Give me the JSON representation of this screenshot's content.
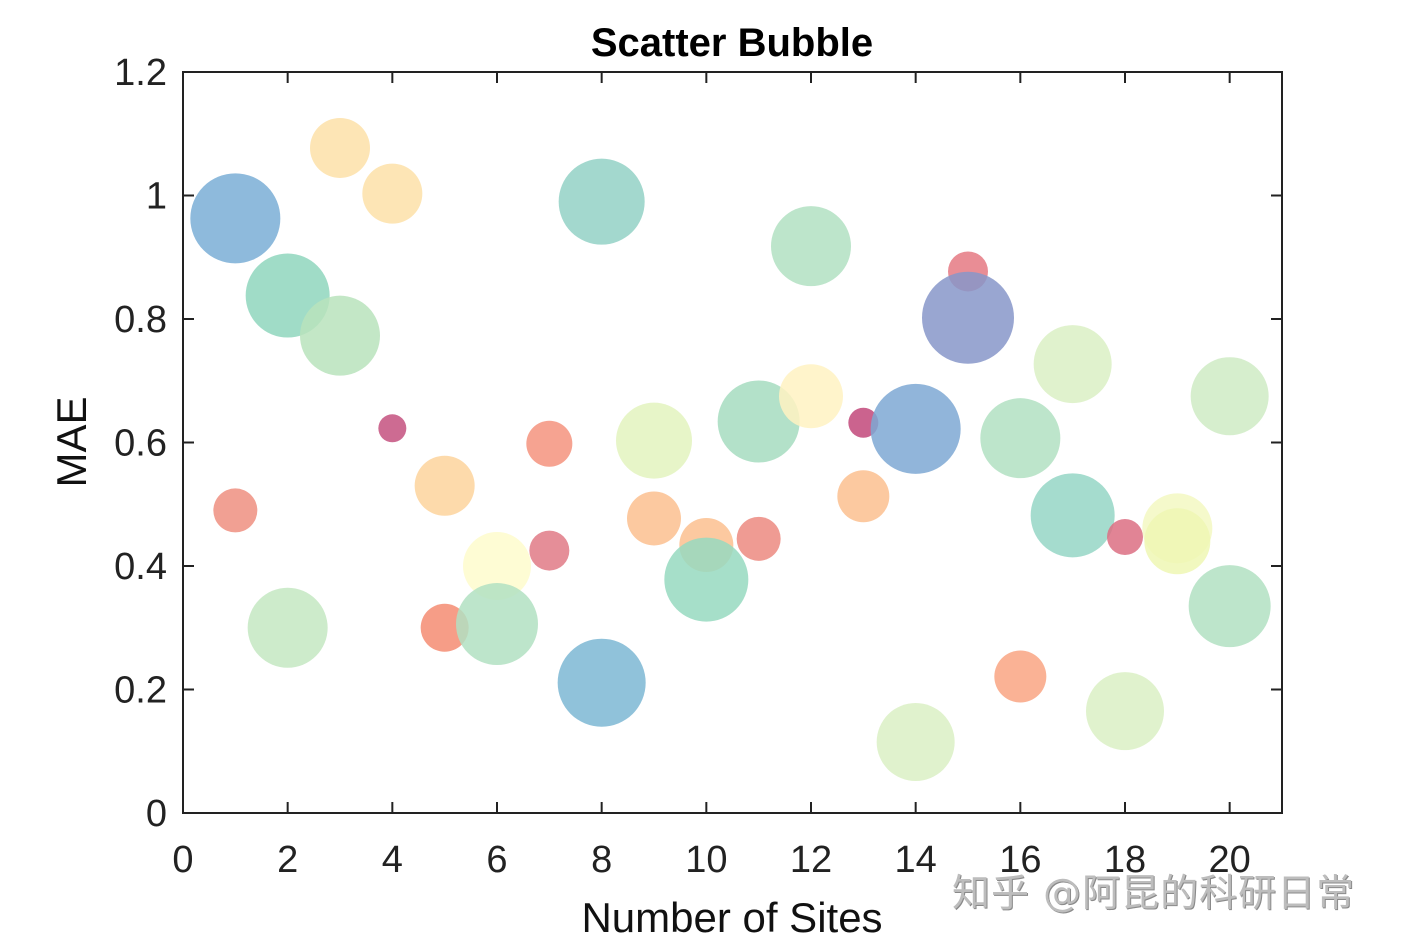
{
  "chart_data": {
    "type": "scatter",
    "subtype": "bubble",
    "title": "Scatter Bubble",
    "xlabel": "Number of Sites",
    "ylabel": "MAE",
    "xlim": [
      0,
      21
    ],
    "ylim": [
      0,
      1.2
    ],
    "xticks": [
      0,
      2,
      4,
      6,
      8,
      10,
      12,
      14,
      16,
      18,
      20
    ],
    "xtick_labels": [
      "0",
      "2",
      "4",
      "6",
      "8",
      "10",
      "12",
      "14",
      "16",
      "18",
      "20"
    ],
    "yticks": [
      0,
      0.2,
      0.4,
      0.6,
      0.8,
      1.0,
      1.2
    ],
    "ytick_labels": [
      "0",
      "0.2",
      "0.4",
      "0.6",
      "0.8",
      "1",
      "1.2"
    ],
    "grid": false,
    "box": true,
    "legend": null,
    "colormap": "Spectral (semi-transparent)",
    "points": [
      {
        "x": 1,
        "y": 0.963,
        "r": 45,
        "color": "#7aaed6"
      },
      {
        "x": 1,
        "y": 0.49,
        "r": 22,
        "color": "#ee8f80"
      },
      {
        "x": 2,
        "y": 0.838,
        "r": 42,
        "color": "#8fd6bd"
      },
      {
        "x": 2,
        "y": 0.3,
        "r": 40,
        "color": "#c4e8c2"
      },
      {
        "x": 3,
        "y": 1.077,
        "r": 30,
        "color": "#fde0a8"
      },
      {
        "x": 3,
        "y": 0.773,
        "r": 40,
        "color": "#b8e3bc"
      },
      {
        "x": 4,
        "y": 1.003,
        "r": 30,
        "color": "#fde0a8"
      },
      {
        "x": 4,
        "y": 0.623,
        "r": 14,
        "color": "#c4517f"
      },
      {
        "x": 5,
        "y": 0.53,
        "r": 30,
        "color": "#fdd39c"
      },
      {
        "x": 5,
        "y": 0.3,
        "r": 24,
        "color": "#f48c72"
      },
      {
        "x": 6,
        "y": 0.4,
        "r": 34,
        "color": "#fefccc"
      },
      {
        "x": 6,
        "y": 0.306,
        "r": 41,
        "color": "#b2e0c2"
      },
      {
        "x": 7,
        "y": 0.598,
        "r": 23,
        "color": "#f4937e"
      },
      {
        "x": 7,
        "y": 0.425,
        "r": 20,
        "color": "#e07a86"
      },
      {
        "x": 8,
        "y": 0.99,
        "r": 43,
        "color": "#93d1c6"
      },
      {
        "x": 8,
        "y": 0.211,
        "r": 44,
        "color": "#7cb7d4"
      },
      {
        "x": 9,
        "y": 0.603,
        "r": 38,
        "color": "#e3f3be"
      },
      {
        "x": 9,
        "y": 0.477,
        "r": 27,
        "color": "#fbbf8f"
      },
      {
        "x": 10,
        "y": 0.434,
        "r": 27,
        "color": "#fbbf8f"
      },
      {
        "x": 10,
        "y": 0.378,
        "r": 42,
        "color": "#97d9c0"
      },
      {
        "x": 11,
        "y": 0.634,
        "r": 41,
        "color": "#a6dcc0"
      },
      {
        "x": 11,
        "y": 0.444,
        "r": 22,
        "color": "#ec8a80"
      },
      {
        "x": 12,
        "y": 0.918,
        "r": 40,
        "color": "#b2e0c2"
      },
      {
        "x": 12,
        "y": 0.675,
        "r": 32,
        "color": "#fff2c2"
      },
      {
        "x": 13,
        "y": 0.632,
        "r": 15,
        "color": "#c2487a"
      },
      {
        "x": 13,
        "y": 0.513,
        "r": 26,
        "color": "#fbbf8f"
      },
      {
        "x": 14,
        "y": 0.622,
        "r": 45,
        "color": "#7ea8d3"
      },
      {
        "x": 14,
        "y": 0.115,
        "r": 39,
        "color": "#dbf0c4"
      },
      {
        "x": 15,
        "y": 0.877,
        "r": 20,
        "color": "#e57982"
      },
      {
        "x": 15,
        "y": 0.802,
        "r": 46,
        "color": "#8797c9"
      },
      {
        "x": 16,
        "y": 0.607,
        "r": 40,
        "color": "#b2e0c2"
      },
      {
        "x": 16,
        "y": 0.221,
        "r": 26,
        "color": "#f9a583"
      },
      {
        "x": 17,
        "y": 0.727,
        "r": 39,
        "color": "#dbf0c4"
      },
      {
        "x": 17,
        "y": 0.482,
        "r": 42,
        "color": "#95d6c6"
      },
      {
        "x": 18,
        "y": 0.447,
        "r": 18,
        "color": "#dc6e82"
      },
      {
        "x": 18,
        "y": 0.165,
        "r": 39,
        "color": "#dbf0c4"
      },
      {
        "x": 19,
        "y": 0.461,
        "r": 35,
        "color": "#f3f8c2"
      },
      {
        "x": 19,
        "y": 0.44,
        "r": 33,
        "color": "#eef7b4"
      },
      {
        "x": 20,
        "y": 0.675,
        "r": 39,
        "color": "#cfebc4"
      },
      {
        "x": 20,
        "y": 0.335,
        "r": 41,
        "color": "#b2e0c2"
      }
    ]
  },
  "watermark": "知乎 @阿昆的科研日常"
}
